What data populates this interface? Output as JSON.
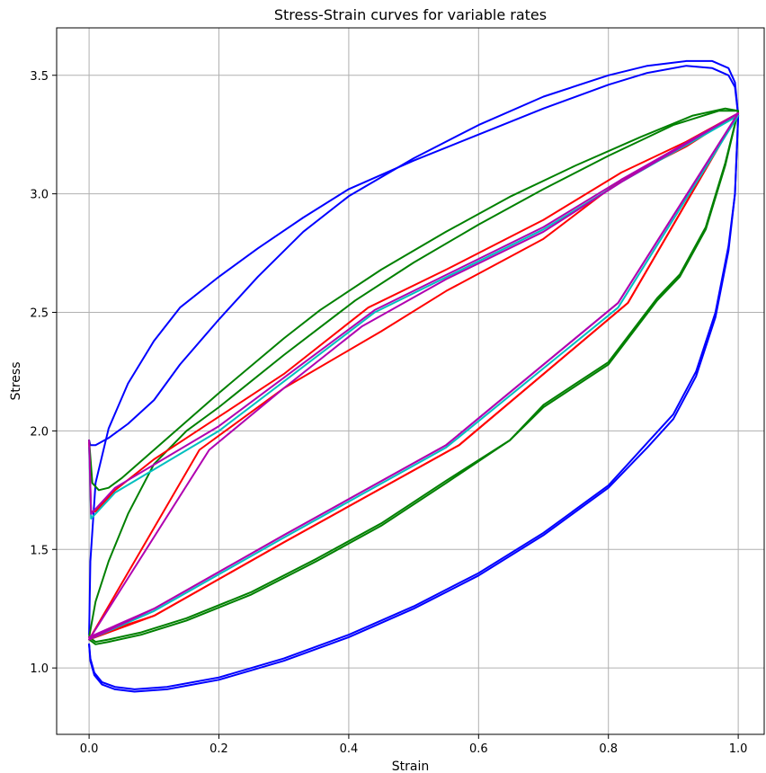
{
  "chart_data": {
    "type": "line",
    "title": "Stress-Strain curves for variable rates",
    "xlabel": "Strain",
    "ylabel": "Stress",
    "xlim": [
      -0.05,
      1.04
    ],
    "ylim": [
      0.72,
      3.7
    ],
    "xticks": [
      0.0,
      0.2,
      0.4,
      0.6,
      0.8,
      1.0
    ],
    "yticks": [
      1.0,
      1.5,
      2.0,
      2.5,
      3.0,
      3.5
    ],
    "xtick_labels": [
      "0.0",
      "0.2",
      "0.4",
      "0.6",
      "0.8",
      "1.0"
    ],
    "ytick_labels": [
      "1.0",
      "1.5",
      "2.0",
      "2.5",
      "3.0",
      "3.5"
    ],
    "grid": true,
    "legend": "none",
    "series": [
      {
        "color": "#0000ff",
        "x": [
          0.0,
          0.002,
          0.01,
          0.03,
          0.06,
          0.1,
          0.14,
          0.2,
          0.26,
          0.33,
          0.4,
          0.5,
          0.6,
          0.7,
          0.8,
          0.86,
          0.92,
          0.96,
          0.985,
          0.995,
          1.0,
          0.995,
          0.985,
          0.965,
          0.935,
          0.9,
          0.86,
          0.8,
          0.7,
          0.6,
          0.5,
          0.4,
          0.3,
          0.2,
          0.12,
          0.07,
          0.04,
          0.02,
          0.008,
          0.002,
          0.0
        ],
        "y": [
          1.96,
          1.94,
          1.94,
          1.97,
          2.03,
          2.13,
          2.28,
          2.47,
          2.65,
          2.84,
          2.99,
          3.15,
          3.29,
          3.41,
          3.5,
          3.54,
          3.56,
          3.56,
          3.53,
          3.47,
          3.33,
          3.0,
          2.78,
          2.5,
          2.25,
          2.07,
          1.95,
          1.77,
          1.57,
          1.4,
          1.26,
          1.14,
          1.04,
          0.96,
          0.92,
          0.91,
          0.92,
          0.94,
          0.98,
          1.04,
          1.1
        ]
      },
      {
        "color": "#0000ff",
        "x": [
          0.0,
          0.002,
          0.01,
          0.03,
          0.06,
          0.1,
          0.14,
          0.2,
          0.26,
          0.33,
          0.4,
          0.5,
          0.6,
          0.7,
          0.8,
          0.86,
          0.92,
          0.96,
          0.985,
          0.995,
          1.0,
          0.995,
          0.985,
          0.965,
          0.935,
          0.9,
          0.86,
          0.8,
          0.7,
          0.6,
          0.5,
          0.4,
          0.3,
          0.2,
          0.12,
          0.07,
          0.04,
          0.02,
          0.008,
          0.002,
          0.0
        ],
        "y": [
          1.14,
          1.45,
          1.78,
          2.01,
          2.2,
          2.38,
          2.52,
          2.65,
          2.77,
          2.9,
          3.02,
          3.14,
          3.25,
          3.36,
          3.46,
          3.51,
          3.54,
          3.53,
          3.5,
          3.45,
          3.33,
          3.0,
          2.76,
          2.48,
          2.23,
          2.05,
          1.93,
          1.76,
          1.56,
          1.39,
          1.25,
          1.13,
          1.03,
          0.95,
          0.91,
          0.9,
          0.91,
          0.93,
          0.97,
          1.03,
          1.1
        ]
      },
      {
        "color": "#008000",
        "x": [
          0.0,
          0.005,
          0.015,
          0.03,
          0.05,
          0.1,
          0.2,
          0.3,
          0.356,
          0.45,
          0.55,
          0.65,
          0.75,
          0.85,
          0.93,
          0.98,
          1.0,
          0.98,
          0.95,
          0.91,
          0.875,
          0.8,
          0.7,
          0.648,
          0.55,
          0.45,
          0.35,
          0.25,
          0.15,
          0.08,
          0.03,
          0.01,
          0.0
        ],
        "y": [
          1.96,
          1.78,
          1.75,
          1.76,
          1.8,
          1.92,
          2.16,
          2.39,
          2.51,
          2.68,
          2.84,
          2.99,
          3.12,
          3.24,
          3.33,
          3.36,
          3.35,
          3.12,
          2.85,
          2.65,
          2.55,
          2.28,
          2.1,
          1.96,
          1.78,
          1.6,
          1.45,
          1.31,
          1.2,
          1.14,
          1.11,
          1.1,
          1.12
        ]
      },
      {
        "color": "#008000",
        "x": [
          0.0,
          0.01,
          0.03,
          0.06,
          0.1,
          0.15,
          0.2,
          0.3,
          0.41,
          0.5,
          0.6,
          0.7,
          0.8,
          0.9,
          0.97,
          1.0,
          0.98,
          0.95,
          0.91,
          0.875,
          0.8,
          0.7,
          0.648,
          0.55,
          0.45,
          0.35,
          0.25,
          0.15,
          0.08,
          0.03,
          0.01,
          0.0
        ],
        "y": [
          1.13,
          1.28,
          1.45,
          1.65,
          1.86,
          2.0,
          2.1,
          2.32,
          2.55,
          2.71,
          2.87,
          3.02,
          3.16,
          3.29,
          3.35,
          3.35,
          3.13,
          2.86,
          2.66,
          2.56,
          2.29,
          2.11,
          1.96,
          1.79,
          1.61,
          1.46,
          1.32,
          1.21,
          1.15,
          1.12,
          1.11,
          1.13
        ]
      },
      {
        "color": "#ff0000",
        "x": [
          0.0,
          0.003,
          0.01,
          0.04,
          0.1,
          0.2,
          0.3,
          0.43,
          0.55,
          0.7,
          0.82,
          0.92,
          1.0,
          0.83,
          0.57,
          0.3,
          0.1,
          0.0
        ],
        "y": [
          1.95,
          1.66,
          1.66,
          1.75,
          1.88,
          2.06,
          2.24,
          2.52,
          2.68,
          2.89,
          3.09,
          3.22,
          3.34,
          2.54,
          1.94,
          1.53,
          1.22,
          1.12
        ]
      },
      {
        "color": "#ff0000",
        "x": [
          0.0,
          0.17,
          0.3,
          0.45,
          0.55,
          0.7,
          0.82,
          0.92,
          1.0,
          0.83,
          0.57,
          0.3,
          0.1,
          0.0
        ],
        "y": [
          1.12,
          1.92,
          2.18,
          2.42,
          2.59,
          2.81,
          3.06,
          3.2,
          3.34,
          2.54,
          1.94,
          1.53,
          1.22,
          1.13
        ]
      },
      {
        "color": "#00bfbf",
        "x": [
          0.0,
          0.003,
          0.04,
          0.2,
          0.44,
          0.7,
          0.82,
          1.0,
          0.815,
          0.55,
          0.3,
          0.1,
          0.0
        ],
        "y": [
          1.93,
          1.63,
          1.74,
          2.0,
          2.5,
          2.85,
          3.05,
          3.33,
          2.52,
          1.93,
          1.55,
          1.24,
          1.12
        ]
      },
      {
        "color": "#b000b0",
        "x": [
          0.0,
          0.003,
          0.04,
          0.2,
          0.44,
          0.7,
          0.82,
          1.0,
          0.815,
          0.55,
          0.3,
          0.1,
          0.0
        ],
        "y": [
          1.96,
          1.65,
          1.76,
          2.02,
          2.51,
          2.86,
          3.06,
          3.34,
          2.54,
          1.94,
          1.56,
          1.25,
          1.13
        ]
      },
      {
        "color": "#b000b0",
        "x": [
          0.0,
          0.185,
          0.3,
          0.42,
          0.55,
          0.7,
          0.82,
          1.0,
          0.815,
          0.55,
          0.3,
          0.1,
          0.0
        ],
        "y": [
          1.12,
          1.92,
          2.18,
          2.44,
          2.64,
          2.84,
          3.05,
          3.34,
          2.54,
          1.94,
          1.56,
          1.25,
          1.12
        ]
      }
    ]
  }
}
